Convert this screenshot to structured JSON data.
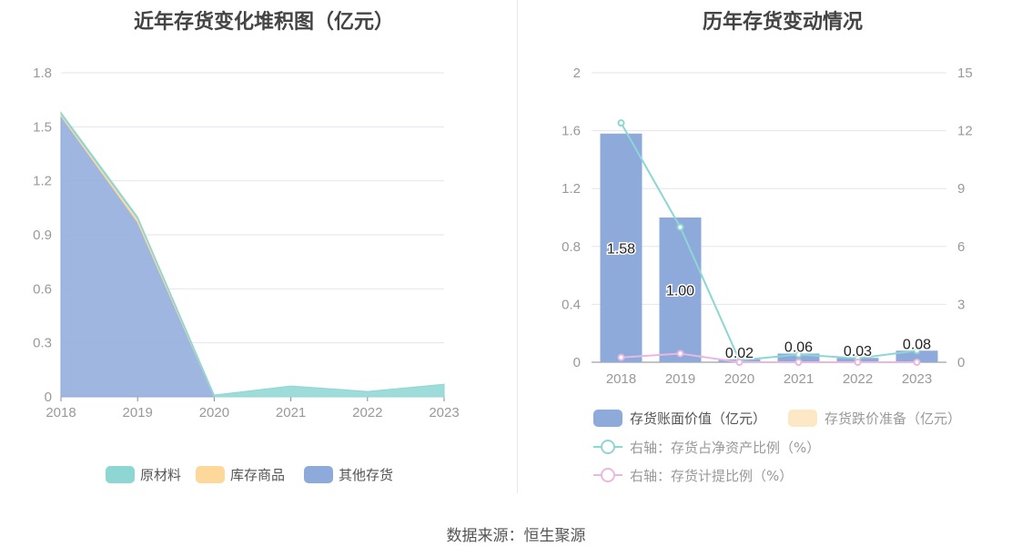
{
  "charts": {
    "left_title": "近年存货变化堆积图（亿元）",
    "right_title": "历年存货变动情况"
  },
  "source": "数据来源：恒生聚源",
  "chart_data": [
    {
      "type": "area",
      "title": "近年存货变化堆积图（亿元）",
      "categories": [
        "2018",
        "2019",
        "2020",
        "2021",
        "2022",
        "2023"
      ],
      "ylim": [
        0,
        1.8
      ],
      "yticks": [
        "0",
        "0.3",
        "0.6",
        "0.9",
        "1.2",
        "1.5",
        "1.8"
      ],
      "series": [
        {
          "name": "其他存货",
          "values": [
            1.56,
            0.97,
            0.0,
            0.0,
            0.0,
            0.0
          ],
          "color": "#8eaadb"
        },
        {
          "name": "库存商品",
          "values": [
            0.01,
            0.02,
            0.0,
            0.0,
            0.0,
            0.0
          ],
          "color": "#fdd89a"
        },
        {
          "name": "原材料",
          "values": [
            0.01,
            0.01,
            0.01,
            0.06,
            0.03,
            0.07
          ],
          "color": "#8dd6d4"
        }
      ],
      "legend": "bottom",
      "grid": true
    },
    {
      "type": "bar",
      "title": "历年存货变动情况",
      "categories": [
        "2018",
        "2019",
        "2020",
        "2021",
        "2022",
        "2023"
      ],
      "ylim": [
        0,
        2
      ],
      "yticks": [
        "0",
        "0.4",
        "0.8",
        "1.2",
        "1.6",
        "2"
      ],
      "y2lim": [
        0,
        15
      ],
      "y2ticks": [
        "0",
        "3",
        "6",
        "9",
        "12",
        "15"
      ],
      "series": [
        {
          "name": "存货账面价值（亿元）",
          "type": "bar",
          "values": [
            1.58,
            1.0,
            0.02,
            0.06,
            0.03,
            0.08
          ],
          "labels": [
            "1.58",
            "1.00",
            "0.02",
            "0.06",
            "0.03",
            "0.08"
          ],
          "color": "#8eaadb"
        },
        {
          "name": "存货跌价准备（亿元）",
          "type": "bar",
          "values": [
            0,
            0,
            0,
            0,
            0,
            0
          ],
          "color": "#fde8c6"
        },
        {
          "name": "右轴：存货占净资产比例（%）",
          "type": "line",
          "axis": "right",
          "values": [
            12.4,
            7.0,
            0.1,
            0.4,
            0.2,
            0.6
          ],
          "color": "#8dd6d4"
        },
        {
          "name": "右轴：存货计提比例（%）",
          "type": "line",
          "axis": "right",
          "values": [
            0.25,
            0.45,
            0.0,
            0.0,
            0.0,
            0.0
          ],
          "color": "#e8b8e0"
        }
      ],
      "legend": "bottom",
      "grid": true
    }
  ]
}
